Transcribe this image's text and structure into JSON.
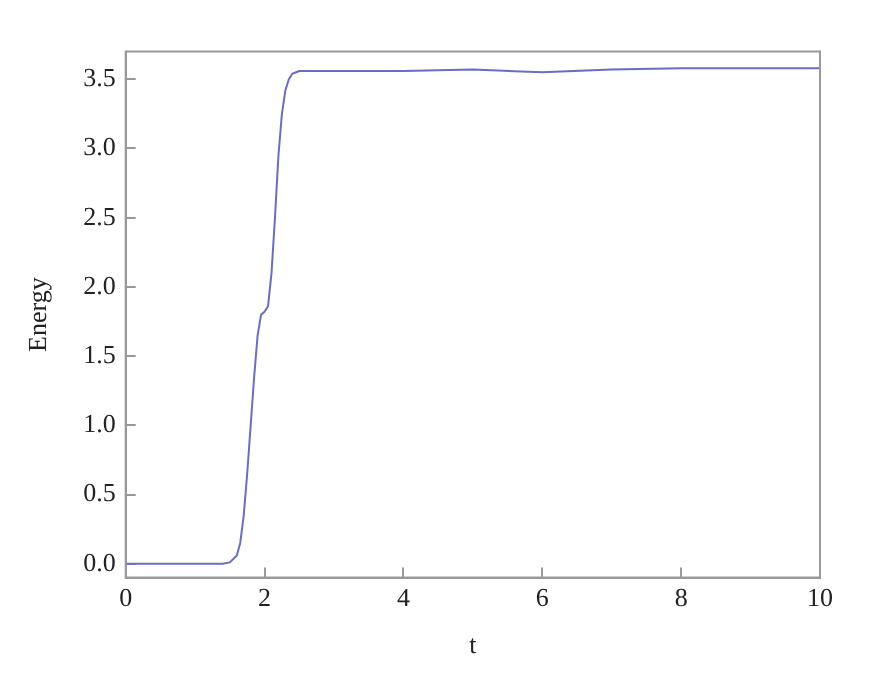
{
  "chart_data": {
    "type": "line",
    "xlabel": "t",
    "ylabel": "Energy",
    "series": [
      {
        "color": "#6b6bc8",
        "x": [
          0,
          0.5,
          1,
          1.3,
          1.4,
          1.5,
          1.6,
          1.65,
          1.7,
          1.75,
          1.8,
          1.85,
          1.9,
          1.95,
          2.0,
          2.05,
          2.1,
          2.15,
          2.2,
          2.25,
          2.3,
          2.35,
          2.4,
          2.5,
          2.7,
          3,
          4,
          5,
          6,
          7,
          8,
          9,
          10
        ],
        "values": [
          0,
          0,
          0,
          0,
          0,
          0.01,
          0.06,
          0.15,
          0.35,
          0.65,
          1.0,
          1.35,
          1.65,
          1.8,
          1.82,
          1.86,
          2.1,
          2.5,
          2.95,
          3.25,
          3.42,
          3.5,
          3.54,
          3.56,
          3.56,
          3.56,
          3.56,
          3.57,
          3.55,
          3.57,
          3.58,
          3.58,
          3.58
        ]
      }
    ],
    "xlim": [
      0,
      10
    ],
    "xticks": [
      0,
      2,
      4,
      6,
      8,
      10
    ],
    "ylim": [
      -0.1,
      3.7
    ],
    "yticks": [
      {
        "value": 0,
        "label": "0.0"
      },
      {
        "value": 0.5,
        "label": "0.5"
      },
      {
        "value": 1,
        "label": "1.0"
      },
      {
        "value": 1.5,
        "label": "1.5"
      },
      {
        "value": 2,
        "label": "2.0"
      },
      {
        "value": 2.5,
        "label": "2.5"
      },
      {
        "value": 3,
        "label": "3.0"
      },
      {
        "value": 3.5,
        "label": "3.5"
      }
    ],
    "grid": false,
    "legend": false,
    "marker": "none",
    "line_style": "solid"
  }
}
